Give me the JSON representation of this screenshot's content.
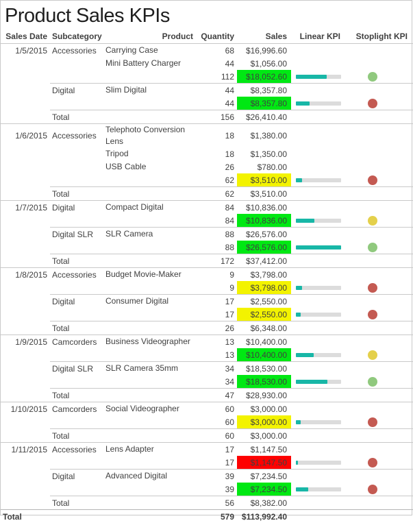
{
  "report": {
    "title": "Product Sales KPIs"
  },
  "colors": {
    "highlight_green": "#00e813",
    "highlight_yellow": "#f3f300",
    "highlight_red": "#fe0101",
    "bar_fill": "#18b7a7",
    "bar_track": "#dcdcdc",
    "stoplight_green": "#90c97e",
    "stoplight_yellow": "#e4d04b",
    "stoplight_red": "#c45a52"
  },
  "chart_data": {
    "type": "table",
    "title": "Product Sales KPIs",
    "columns": [
      "Sales Date",
      "Subcategory",
      "Product",
      "Quantity",
      "Sales",
      "Linear KPI",
      "Stoplight KPI"
    ],
    "groups": [
      {
        "date": "1/5/2015",
        "subgroups": [
          {
            "subcategory": "Accessories",
            "products": [
              {
                "name": "Carrying Case",
                "qty": "68",
                "sales": "$16,996.60"
              },
              {
                "name": "Mini Battery Charger",
                "qty": "44",
                "sales": "$1,056.00"
              }
            ],
            "subtotal": {
              "qty": "112",
              "sales": "$18,052.60",
              "highlight": "green",
              "bar_pct": 68,
              "stoplight": "green"
            }
          },
          {
            "subcategory": "Digital",
            "products": [
              {
                "name": "Slim Digital",
                "qty": "44",
                "sales": "$8,357.80"
              }
            ],
            "subtotal": {
              "qty": "44",
              "sales": "$8,357.80",
              "highlight": "green",
              "bar_pct": 31,
              "stoplight": "red"
            }
          }
        ],
        "total": {
          "label": "Total",
          "qty": "156",
          "sales": "$26,410.40"
        }
      },
      {
        "date": "1/6/2015",
        "subgroups": [
          {
            "subcategory": "Accessories",
            "products": [
              {
                "name": "Telephoto Conversion Lens",
                "qty": "18",
                "sales": "$1,380.00"
              },
              {
                "name": "Tripod",
                "qty": "18",
                "sales": "$1,350.00"
              },
              {
                "name": "USB Cable",
                "qty": "26",
                "sales": "$780.00"
              }
            ],
            "subtotal": {
              "qty": "62",
              "sales": "$3,510.00",
              "highlight": "yellow",
              "bar_pct": 13,
              "stoplight": "red"
            }
          }
        ],
        "total": {
          "label": "Total",
          "qty": "62",
          "sales": "$3,510.00"
        }
      },
      {
        "date": "1/7/2015",
        "subgroups": [
          {
            "subcategory": "Digital",
            "products": [
              {
                "name": "Compact Digital",
                "qty": "84",
                "sales": "$10,836.00"
              }
            ],
            "subtotal": {
              "qty": "84",
              "sales": "$10,836.00",
              "highlight": "green",
              "bar_pct": 41,
              "stoplight": "yellow"
            }
          },
          {
            "subcategory": "Digital SLR",
            "products": [
              {
                "name": "SLR Camera",
                "qty": "88",
                "sales": "$26,576.00"
              }
            ],
            "subtotal": {
              "qty": "88",
              "sales": "$26,576.00",
              "highlight": "green",
              "bar_pct": 100,
              "stoplight": "green"
            }
          }
        ],
        "total": {
          "label": "Total",
          "qty": "172",
          "sales": "$37,412.00"
        }
      },
      {
        "date": "1/8/2015",
        "subgroups": [
          {
            "subcategory": "Accessories",
            "products": [
              {
                "name": "Budget Movie-Maker",
                "qty": "9",
                "sales": "$3,798.00"
              }
            ],
            "subtotal": {
              "qty": "9",
              "sales": "$3,798.00",
              "highlight": "yellow",
              "bar_pct": 14,
              "stoplight": "red"
            }
          },
          {
            "subcategory": "Digital",
            "products": [
              {
                "name": "Consumer Digital",
                "qty": "17",
                "sales": "$2,550.00"
              }
            ],
            "subtotal": {
              "qty": "17",
              "sales": "$2,550.00",
              "highlight": "yellow",
              "bar_pct": 10,
              "stoplight": "red"
            }
          }
        ],
        "total": {
          "label": "Total",
          "qty": "26",
          "sales": "$6,348.00"
        }
      },
      {
        "date": "1/9/2015",
        "subgroups": [
          {
            "subcategory": "Camcorders",
            "products": [
              {
                "name": "Business Videographer",
                "qty": "13",
                "sales": "$10,400.00"
              }
            ],
            "subtotal": {
              "qty": "13",
              "sales": "$10,400.00",
              "highlight": "green",
              "bar_pct": 39,
              "stoplight": "yellow"
            }
          },
          {
            "subcategory": "Digital SLR",
            "products": [
              {
                "name": "SLR Camera 35mm",
                "qty": "34",
                "sales": "$18,530.00"
              }
            ],
            "subtotal": {
              "qty": "34",
              "sales": "$18,530.00",
              "highlight": "green",
              "bar_pct": 70,
              "stoplight": "green"
            }
          }
        ],
        "total": {
          "label": "Total",
          "qty": "47",
          "sales": "$28,930.00"
        }
      },
      {
        "date": "1/10/2015",
        "subgroups": [
          {
            "subcategory": "Camcorders",
            "products": [
              {
                "name": "Social Videographer",
                "qty": "60",
                "sales": "$3,000.00"
              }
            ],
            "subtotal": {
              "qty": "60",
              "sales": "$3,000.00",
              "highlight": "yellow",
              "bar_pct": 11,
              "stoplight": "red"
            }
          }
        ],
        "total": {
          "label": "Total",
          "qty": "60",
          "sales": "$3,000.00"
        }
      },
      {
        "date": "1/11/2015",
        "subgroups": [
          {
            "subcategory": "Accessories",
            "products": [
              {
                "name": "Lens Adapter",
                "qty": "17",
                "sales": "$1,147.50"
              }
            ],
            "subtotal": {
              "qty": "17",
              "sales": "$1,147.50",
              "highlight": "red",
              "bar_pct": 4,
              "stoplight": "red"
            }
          },
          {
            "subcategory": "Digital",
            "products": [
              {
                "name": "Advanced Digital",
                "qty": "39",
                "sales": "$7,234.50"
              }
            ],
            "subtotal": {
              "qty": "39",
              "sales": "$7,234.50",
              "highlight": "green",
              "bar_pct": 27,
              "stoplight": "red"
            }
          }
        ],
        "total": {
          "label": "Total",
          "qty": "56",
          "sales": "$8,382.00"
        }
      }
    ],
    "grand_total": {
      "label": "Total",
      "qty": "579",
      "sales": "$113,992.40"
    }
  }
}
